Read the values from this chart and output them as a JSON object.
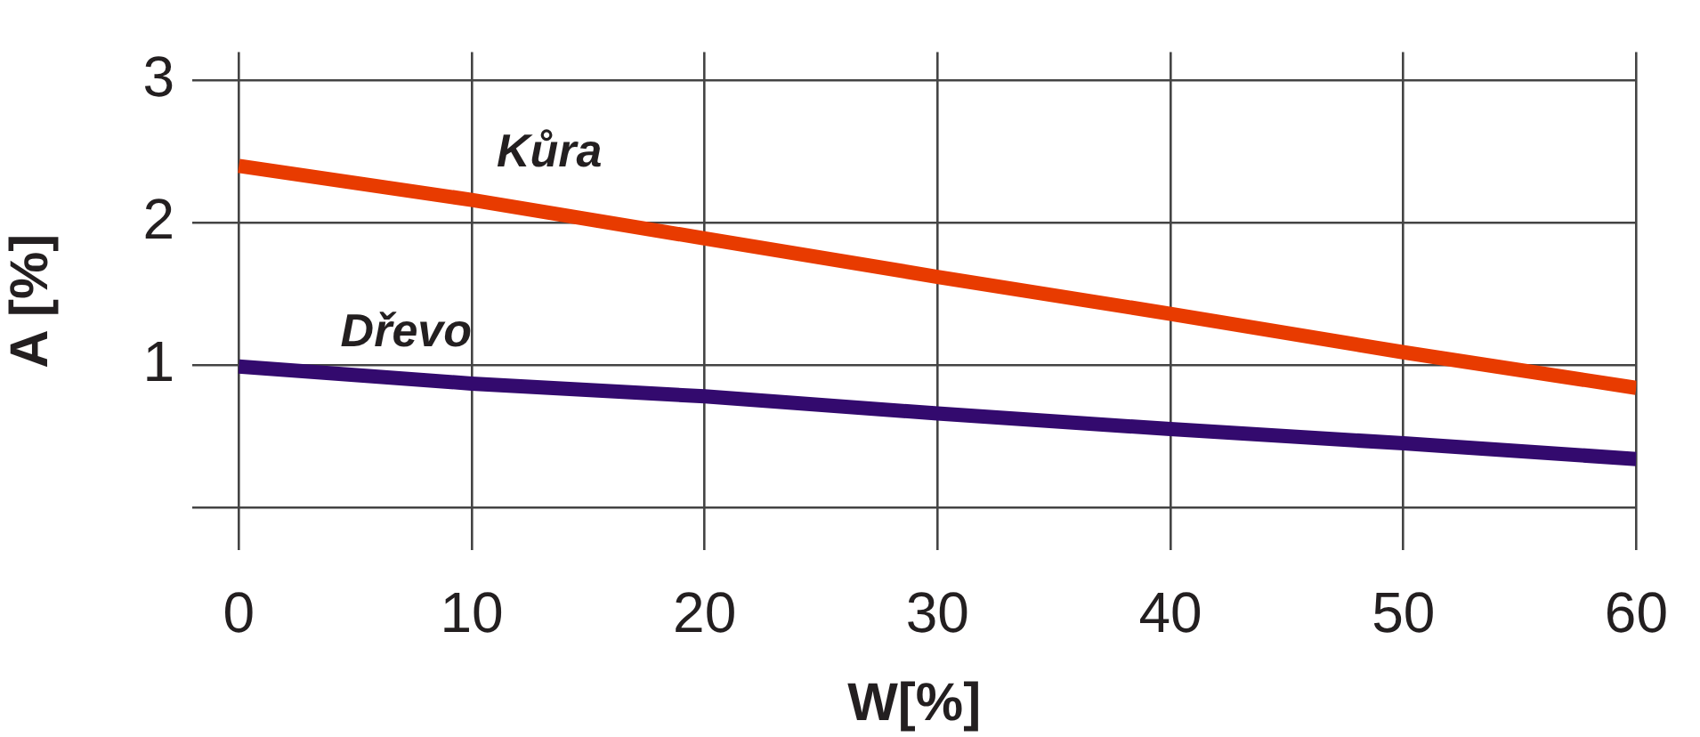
{
  "chart_data": {
    "type": "line",
    "xlabel": "W[%]",
    "ylabel": "A [%]",
    "x": [
      0,
      10,
      20,
      30,
      40,
      50,
      60
    ],
    "series": [
      {
        "name": "Kůra",
        "color": "#e83b00",
        "values": [
          2.4,
          2.16,
          1.89,
          1.62,
          1.36,
          1.09,
          0.84
        ]
      },
      {
        "name": "Dřevo",
        "color": "#330a6e",
        "values": [
          0.99,
          0.87,
          0.78,
          0.66,
          0.55,
          0.45,
          0.34
        ]
      }
    ],
    "xlim": [
      -2,
      60
    ],
    "xticks": [
      0,
      10,
      20,
      30,
      40,
      50,
      60
    ],
    "ylim": [
      -0.3,
      3.2
    ],
    "yticks": [
      {
        "value": 0,
        "label": null
      },
      1,
      2,
      3
    ],
    "grid": true,
    "legend": false,
    "marker": "none",
    "line_style": "solid"
  }
}
